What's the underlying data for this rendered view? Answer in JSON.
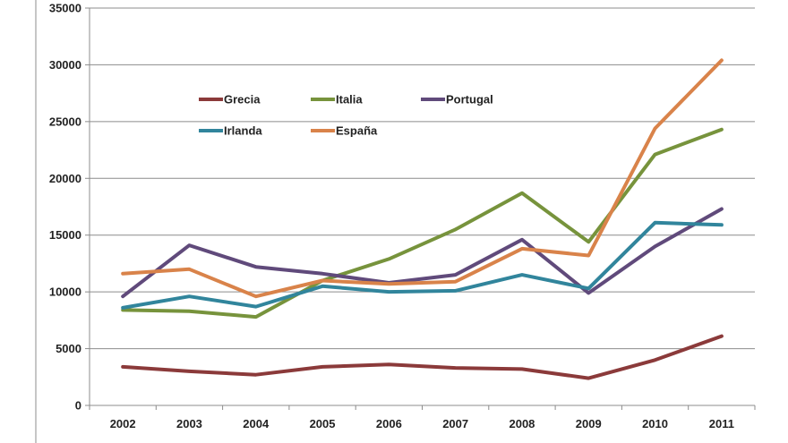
{
  "chart_data": {
    "type": "line",
    "title": "",
    "xlabel": "",
    "ylabel": "",
    "categories": [
      "2002",
      "2003",
      "2004",
      "2005",
      "2006",
      "2007",
      "2008",
      "2009",
      "2010",
      "2011"
    ],
    "ylim": [
      0,
      35000
    ],
    "yticks": [
      0,
      5000,
      10000,
      15000,
      20000,
      25000,
      30000,
      35000
    ],
    "ytick_labels": [
      "0",
      "5000",
      "10000",
      "15000",
      "20000",
      "25000",
      "30000",
      "35000"
    ],
    "grid": true,
    "legend_position": "top-left, inside plot, two rows",
    "series": [
      {
        "name": "Grecia",
        "color": "#8B3A3A",
        "values": [
          3400,
          3000,
          2700,
          3400,
          3600,
          3300,
          3200,
          2400,
          4000,
          6100
        ]
      },
      {
        "name": "Italia",
        "color": "#77933C",
        "values": [
          8400,
          8300,
          7800,
          11000,
          12900,
          15500,
          18700,
          14400,
          22100,
          24300
        ]
      },
      {
        "name": "Portugal",
        "color": "#604A7B",
        "values": [
          9600,
          14100,
          12200,
          11600,
          10800,
          11500,
          14600,
          9900,
          14000,
          17300
        ]
      },
      {
        "name": "Irlanda",
        "color": "#31859C",
        "values": [
          8600,
          9600,
          8700,
          10500,
          10000,
          10100,
          11500,
          10300,
          16100,
          15900
        ]
      },
      {
        "name": "España",
        "color": "#D9834A",
        "values": [
          11600,
          12000,
          9600,
          11000,
          10700,
          10900,
          13800,
          13200,
          24400,
          30400
        ]
      }
    ]
  }
}
